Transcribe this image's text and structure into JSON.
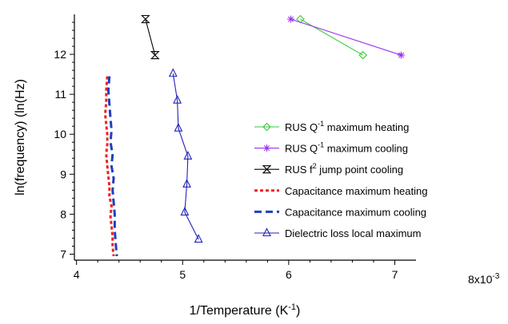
{
  "chart_data": {
    "type": "scatter",
    "title": "",
    "xlabel": {
      "text": "1/Temperature (K",
      "sup": "-1",
      "tail": ")"
    },
    "ylabel": "ln(frequency) (ln(Hz)",
    "x_multiplier": "8x10",
    "x_multiplier_exp": "-3",
    "xlim": [
      3.98,
      7.2
    ],
    "ylim": [
      6.85,
      13.0
    ],
    "x_ticks": [
      "4",
      "5",
      "6",
      "7"
    ],
    "y_ticks": [
      "7",
      "8",
      "9",
      "10",
      "11",
      "12"
    ],
    "grid": false,
    "legend_position": "right-center",
    "series": [
      {
        "name": "RUS Q",
        "sup": "-1",
        "tail": " maximum heating",
        "color": "#33cc33",
        "marker": "diamond",
        "style": "solid",
        "x": [
          6.11,
          6.7
        ],
        "y": [
          12.88,
          11.98
        ]
      },
      {
        "name": "RUS Q",
        "sup": "-1",
        "tail": " maximum cooling",
        "color": "#9933ee",
        "marker": "asterisk",
        "style": "solid",
        "x": [
          6.02,
          7.06
        ],
        "y": [
          12.88,
          11.98
        ]
      },
      {
        "name": "RUS f",
        "sup": "2",
        "tail": " jump point cooling",
        "color": "#000000",
        "marker": "hourglass",
        "style": "solid",
        "x": [
          4.65,
          4.74
        ],
        "y": [
          12.88,
          11.98
        ]
      },
      {
        "name": "Capacitance maximum heating",
        "sup": "",
        "tail": "",
        "color": "#ee2222",
        "marker": "none",
        "style": "dotted",
        "x": [
          4.29,
          4.28,
          4.28,
          4.27,
          4.28,
          4.29,
          4.29,
          4.28,
          4.29,
          4.3,
          4.31,
          4.31,
          4.33,
          4.32,
          4.33,
          4.34,
          4.34,
          4.35
        ],
        "y": [
          11.45,
          11.1,
          10.8,
          10.5,
          10.25,
          10.0,
          9.75,
          9.5,
          9.2,
          8.95,
          8.7,
          8.45,
          8.2,
          7.95,
          7.7,
          7.45,
          7.2,
          6.95
        ]
      },
      {
        "name": "Capacitance maximum cooling",
        "sup": "",
        "tail": "",
        "color": "#1f3fbf",
        "marker": "none",
        "style": "dashed",
        "x": [
          4.31,
          4.3,
          4.31,
          4.32,
          4.33,
          4.32,
          4.34,
          4.33,
          4.35,
          4.34,
          4.35,
          4.36,
          4.36,
          4.37,
          4.38
        ],
        "y": [
          11.45,
          11.1,
          10.75,
          10.4,
          10.1,
          9.8,
          9.5,
          9.2,
          8.9,
          8.6,
          8.3,
          8.0,
          7.6,
          7.25,
          6.95
        ]
      },
      {
        "name": "Dielectric loss local maximum",
        "sup": "",
        "tail": "",
        "color": "#2222bb",
        "marker": "triangle",
        "style": "solid",
        "x": [
          4.91,
          4.95,
          4.96,
          5.05,
          5.04,
          5.02,
          5.15
        ],
        "y": [
          11.52,
          10.85,
          10.15,
          9.45,
          8.75,
          8.05,
          7.37
        ]
      }
    ]
  }
}
